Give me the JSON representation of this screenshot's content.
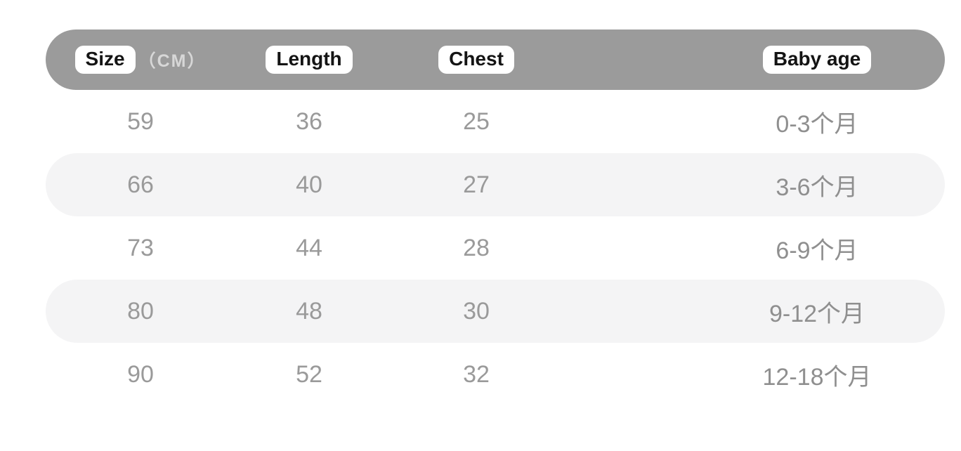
{
  "table": {
    "header": {
      "size_label": "Size",
      "size_unit": "（CM）",
      "length_label": "Length",
      "chest_label": "Chest",
      "age_label": "Baby age"
    },
    "rows": [
      {
        "size": "59",
        "length": "36",
        "chest": "25",
        "age": "0-3个月"
      },
      {
        "size": "66",
        "length": "40",
        "chest": "27",
        "age": "3-6个月"
      },
      {
        "size": "73",
        "length": "44",
        "chest": "28",
        "age": "6-9个月"
      },
      {
        "size": "80",
        "length": "48",
        "chest": "30",
        "age": "9-12个月"
      },
      {
        "size": "90",
        "length": "52",
        "chest": "32",
        "age": "12-18个月"
      }
    ]
  },
  "colors": {
    "header_bar": "#9b9b9b",
    "band": "#f4f4f5",
    "chip_bg": "#ffffff",
    "chip_text": "#141414",
    "unit_text": "#d7d7d7",
    "value_text": "#9a9a9a",
    "age_text": "#8f8f8f"
  }
}
